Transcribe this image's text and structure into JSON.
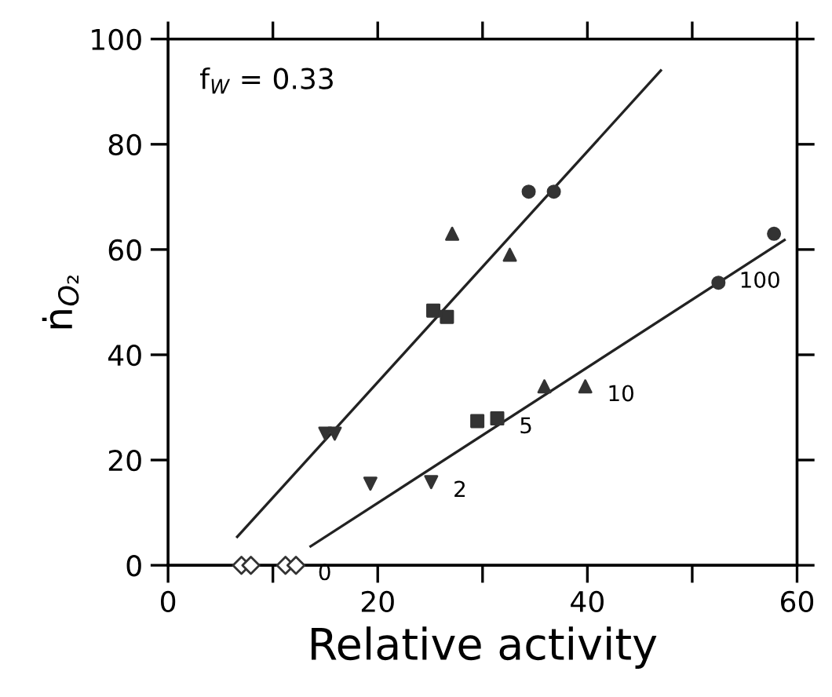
{
  "chart_data": {
    "type": "scatter",
    "xlabel": "Relative activity",
    "ylabel": "ṅ$_{O₂}$",
    "xlim": [
      0,
      60
    ],
    "ylim": [
      0,
      100
    ],
    "xticks": [
      0,
      {
        "value": 10,
        "label": null
      },
      20,
      {
        "value": 30,
        "label": null
      },
      40,
      {
        "value": 50,
        "label": null
      },
      60
    ],
    "yticks": [
      0,
      20,
      40,
      60,
      80,
      100
    ],
    "grid": false,
    "legend": false,
    "annotations": [
      "f$_{W}$ = 0.33",
      {
        "text": "0",
        "x": 12.2,
        "y": 0
      },
      {
        "text": "2",
        "x": 25.1,
        "y": 15.8
      },
      {
        "text": "5",
        "x": 31.4,
        "y": 27.9
      },
      {
        "text": "10",
        "x": 39.8,
        "y": 34
      },
      {
        "text": "100",
        "x": 57.8,
        "y": 63
      }
    ],
    "series": [
      {
        "color": "#333333",
        "marker": "diamond-open",
        "x": [
          7,
          7.9,
          11.2,
          12.2
        ],
        "values": [
          0,
          0,
          0,
          0
        ]
      },
      {
        "color": "#333333",
        "marker": "triangle-down",
        "x": [
          15,
          15.9,
          19.3,
          25.1
        ],
        "values": [
          25,
          25,
          15.5,
          15.8
        ]
      },
      {
        "color": "#333333",
        "marker": "square",
        "x": [
          25.3,
          26.6,
          29.5,
          31.4
        ],
        "values": [
          48.4,
          47.2,
          27.4,
          27.9
        ]
      },
      {
        "color": "#333333",
        "marker": "triangle",
        "x": [
          27.1,
          32.6,
          35.9,
          39.8
        ],
        "values": [
          63,
          59,
          34,
          34
        ]
      },
      {
        "color": "#333333",
        "marker": "circle",
        "x": [
          34.4,
          36.8,
          52.5,
          57.8
        ],
        "values": [
          71,
          71,
          53.7,
          63
        ]
      },
      {
        "type": "line",
        "color": "#222222",
        "marker": "none",
        "line_style": "solid",
        "x": [
          6.6,
          47
        ],
        "values": [
          5.4,
          94
        ]
      },
      {
        "type": "line",
        "color": "#222222",
        "marker": "none",
        "line_style": "solid",
        "x": [
          13.6,
          58.8
        ],
        "values": [
          3.6,
          61.8
        ]
      }
    ]
  }
}
